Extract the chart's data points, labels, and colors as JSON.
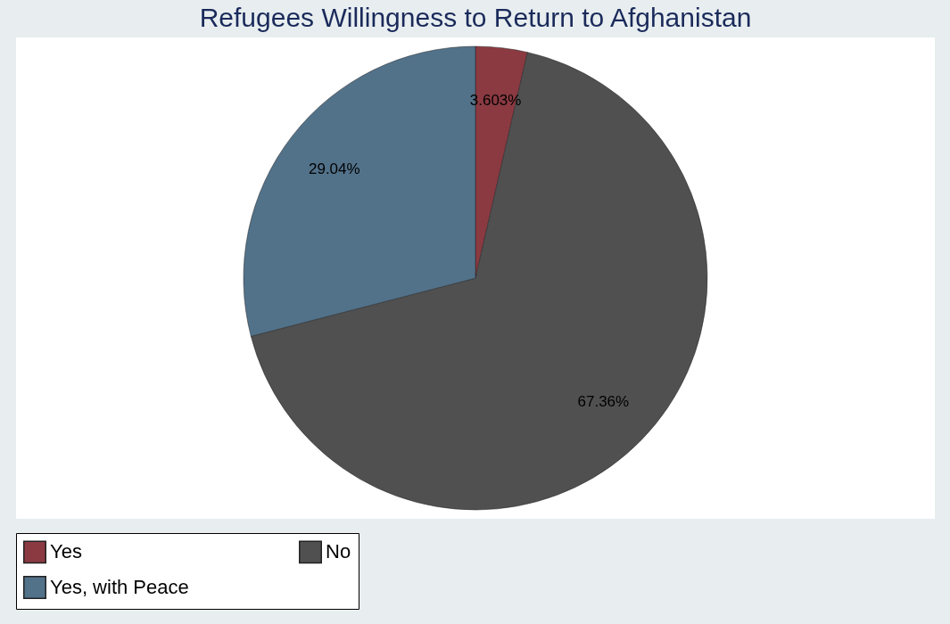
{
  "chart_data": {
    "type": "pie",
    "title": "Refugees Willingness to Return to Afghanistan",
    "categories": [
      "Yes",
      "No",
      "Yes, with Peace"
    ],
    "values": [
      3.603,
      67.36,
      29.04
    ],
    "colors": [
      "#8b3a42",
      "#505050",
      "#52728a"
    ],
    "value_labels": [
      "3.603%",
      "67.36%",
      "29.04%"
    ],
    "legend": "bottom"
  }
}
